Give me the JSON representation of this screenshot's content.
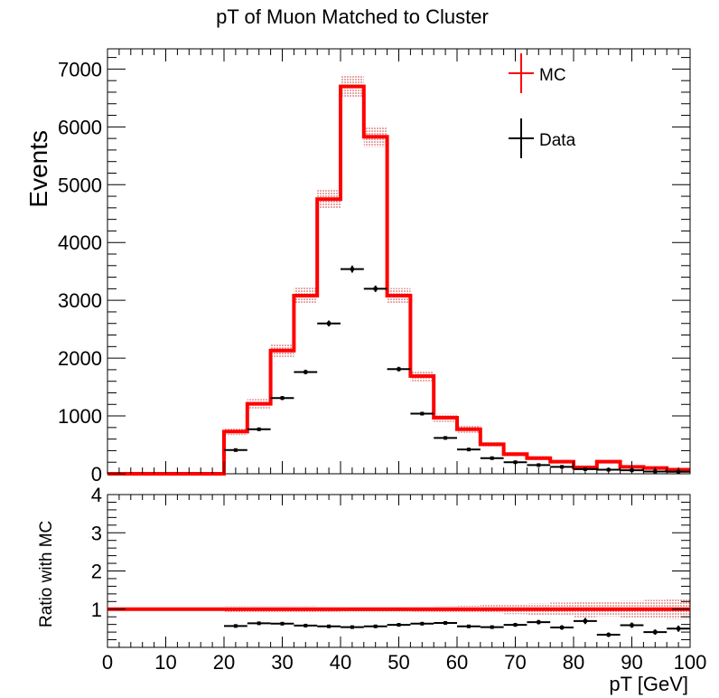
{
  "chart_data": [
    {
      "type": "histogram",
      "title": "pT of Muon Matched to Cluster",
      "xlabel": "",
      "ylabel": "Events",
      "xlim": [
        0,
        100
      ],
      "ylim": [
        0,
        7350
      ],
      "y_ticks": [
        0,
        1000,
        2000,
        3000,
        4000,
        5000,
        6000,
        7000
      ],
      "bin_edges": [
        0,
        4,
        8,
        12,
        16,
        20,
        24,
        28,
        32,
        36,
        40,
        44,
        48,
        52,
        56,
        60,
        64,
        68,
        72,
        76,
        80,
        84,
        88,
        92,
        96,
        100
      ],
      "series": [
        {
          "name": "MC",
          "style": "step-with-error-band",
          "color": "#ff0000",
          "values": [
            0,
            0,
            0,
            0,
            0,
            730,
            1210,
            2130,
            3080,
            4750,
            6700,
            5830,
            3080,
            1690,
            970,
            770,
            510,
            340,
            270,
            210,
            110,
            210,
            120,
            100,
            70
          ],
          "errors": [
            0,
            0,
            0,
            0,
            0,
            60,
            80,
            110,
            140,
            170,
            200,
            180,
            130,
            90,
            70,
            60,
            50,
            40,
            35,
            30,
            25,
            30,
            25,
            20,
            18
          ]
        },
        {
          "name": "Data",
          "style": "points-with-errors",
          "color": "#000000",
          "x": [
            22,
            26,
            30,
            34,
            38,
            42,
            46,
            50,
            54,
            58,
            62,
            66,
            70,
            74,
            78,
            82,
            86,
            90,
            94,
            98
          ],
          "values": [
            410,
            770,
            1310,
            1760,
            2600,
            3540,
            3200,
            1810,
            1040,
            620,
            420,
            270,
            200,
            150,
            120,
            80,
            70,
            60,
            40,
            35
          ],
          "errors": [
            20,
            25,
            35,
            40,
            50,
            60,
            55,
            40,
            30,
            25,
            20,
            16,
            14,
            12,
            11,
            9,
            8,
            8,
            6,
            6
          ]
        }
      ],
      "legend": {
        "position": "top-right",
        "entries": [
          "MC",
          "Data"
        ]
      }
    },
    {
      "type": "scatter",
      "title": "",
      "xlabel": "pT [GeV]",
      "ylabel": "Ratio with MC",
      "xlim": [
        0,
        100
      ],
      "ylim": [
        0,
        4
      ],
      "x_ticks": [
        0,
        10,
        20,
        30,
        40,
        50,
        60,
        70,
        80,
        90,
        100
      ],
      "y_ticks": [
        1,
        2,
        3,
        4
      ],
      "reference": {
        "name": "MC",
        "value": 1,
        "x_range": [
          0,
          100
        ],
        "color": "#ff0000"
      },
      "band": {
        "bin_edges": [
          20,
          24,
          28,
          32,
          36,
          40,
          44,
          48,
          52,
          56,
          60,
          64,
          68,
          72,
          76,
          80,
          84,
          88,
          92,
          96,
          100
        ],
        "half_width": [
          0.08,
          0.08,
          0.08,
          0.08,
          0.07,
          0.06,
          0.06,
          0.06,
          0.07,
          0.08,
          0.09,
          0.11,
          0.13,
          0.15,
          0.17,
          0.21,
          0.19,
          0.22,
          0.24,
          0.26
        ]
      },
      "series": [
        {
          "name": "Data",
          "color": "#000000",
          "x": [
            22,
            26,
            30,
            34,
            38,
            42,
            46,
            50,
            54,
            58,
            62,
            66,
            70,
            74,
            78,
            82,
            86,
            90,
            94,
            98
          ],
          "values": [
            0.56,
            0.63,
            0.62,
            0.57,
            0.55,
            0.53,
            0.55,
            0.59,
            0.62,
            0.64,
            0.55,
            0.53,
            0.59,
            0.66,
            0.52,
            0.69,
            0.33,
            0.58,
            0.4,
            0.49
          ],
          "errors": [
            0.04,
            0.03,
            0.03,
            0.03,
            0.02,
            0.02,
            0.02,
            0.03,
            0.03,
            0.04,
            0.04,
            0.04,
            0.05,
            0.06,
            0.06,
            0.08,
            0.06,
            0.07,
            0.07,
            0.08
          ]
        }
      ]
    }
  ]
}
